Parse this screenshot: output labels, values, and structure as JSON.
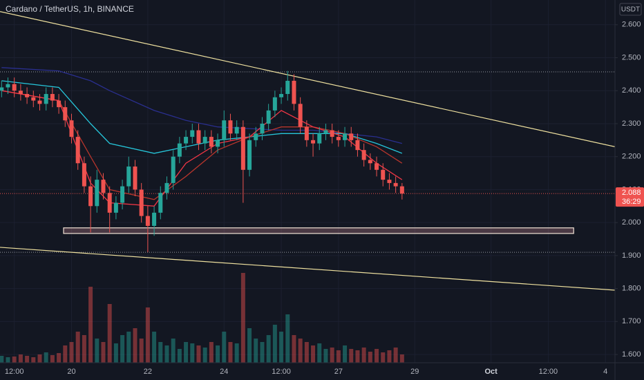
{
  "chart_data": {
    "type": "candlestick",
    "title": "Cardano / TetherUS, 1h, BINANCE",
    "currency": "USDT",
    "countdown": "36:29",
    "grid": true,
    "up_color": "#26a69a",
    "down_color": "#ef5350",
    "xlim": [
      3,
      390
    ],
    "xticks": [
      {
        "value": 12,
        "label": "12:00"
      },
      {
        "value": 48,
        "label": "20"
      },
      {
        "value": 96,
        "label": "22"
      },
      {
        "value": 144,
        "label": "24"
      },
      {
        "value": 180,
        "label": "12:00"
      },
      {
        "value": 216,
        "label": "27"
      },
      {
        "value": 264,
        "label": "29"
      },
      {
        "value": 312,
        "label": "Oct"
      },
      {
        "value": 348,
        "label": "12:00"
      },
      {
        "value": 384,
        "label": "4"
      }
    ],
    "ylim": [
      1.575,
      2.675
    ],
    "yticks": [
      {
        "value": 2.6,
        "label": "2.600"
      },
      {
        "value": 2.5,
        "label": "2.500"
      },
      {
        "value": 2.4,
        "label": "2.400"
      },
      {
        "value": 2.3,
        "label": "2.300"
      },
      {
        "value": 2.2,
        "label": "2.200"
      },
      {
        "value": 2.1,
        "label": "2.100"
      },
      {
        "value": 2.0,
        "label": "2.000"
      },
      {
        "value": 1.9,
        "label": "1.900"
      },
      {
        "value": 1.8,
        "label": "1.800"
      },
      {
        "value": 1.7,
        "label": "1.700"
      },
      {
        "value": 1.6,
        "label": "1.600"
      }
    ],
    "x": [
      4,
      8,
      12,
      16,
      20,
      24,
      28,
      32,
      36,
      40,
      44,
      48,
      52,
      56,
      60,
      64,
      68,
      72,
      76,
      80,
      84,
      88,
      92,
      96,
      100,
      104,
      108,
      112,
      116,
      120,
      124,
      128,
      132,
      136,
      140,
      144,
      148,
      152,
      156,
      160,
      164,
      168,
      172,
      176,
      180,
      184,
      188,
      192,
      196,
      200,
      204,
      208,
      212,
      216,
      220,
      224,
      228,
      232,
      236,
      240,
      244,
      248,
      252,
      256
    ],
    "open": [
      2.4,
      2.41,
      2.42,
      2.4,
      2.39,
      2.38,
      2.37,
      2.36,
      2.39,
      2.37,
      2.35,
      2.31,
      2.26,
      2.18,
      2.11,
      2.05,
      2.13,
      2.09,
      2.03,
      2.06,
      2.11,
      2.17,
      2.1,
      2.02,
      1.99,
      2.03,
      2.09,
      2.12,
      2.2,
      2.24,
      2.26,
      2.28,
      2.24,
      2.26,
      2.23,
      2.25,
      2.31,
      2.27,
      2.29,
      2.16,
      2.25,
      2.27,
      2.3,
      2.34,
      2.38,
      2.39,
      2.43,
      2.36,
      2.29,
      2.25,
      2.24,
      2.27,
      2.28,
      2.26,
      2.25,
      2.27,
      2.25,
      2.22,
      2.19,
      2.18,
      2.16,
      2.13,
      2.12,
      2.11
    ],
    "high": [
      2.43,
      2.44,
      2.44,
      2.42,
      2.41,
      2.4,
      2.39,
      2.41,
      2.41,
      2.39,
      2.37,
      2.33,
      2.28,
      2.2,
      2.14,
      2.16,
      2.15,
      2.11,
      2.08,
      2.13,
      2.2,
      2.19,
      2.12,
      2.05,
      2.05,
      2.11,
      2.14,
      2.22,
      2.26,
      2.28,
      2.3,
      2.3,
      2.28,
      2.28,
      2.27,
      2.34,
      2.33,
      2.31,
      2.31,
      2.27,
      2.29,
      2.32,
      2.36,
      2.4,
      2.41,
      2.46,
      2.45,
      2.38,
      2.31,
      2.27,
      2.29,
      2.3,
      2.3,
      2.28,
      2.29,
      2.29,
      2.27,
      2.24,
      2.21,
      2.2,
      2.18,
      2.15,
      2.14,
      2.12
    ],
    "low": [
      2.38,
      2.39,
      2.38,
      2.37,
      2.36,
      2.35,
      2.34,
      2.34,
      2.35,
      2.33,
      2.29,
      2.24,
      2.16,
      2.09,
      1.97,
      2.03,
      2.07,
      1.97,
      2.01,
      2.04,
      2.09,
      2.08,
      2.0,
      1.91,
      1.96,
      2.01,
      2.07,
      2.1,
      2.18,
      2.22,
      2.24,
      2.22,
      2.22,
      2.21,
      2.21,
      2.23,
      2.25,
      2.25,
      2.06,
      2.14,
      2.23,
      2.25,
      2.28,
      2.32,
      2.36,
      2.37,
      2.34,
      2.27,
      2.23,
      2.2,
      2.22,
      2.25,
      2.24,
      2.23,
      2.23,
      2.23,
      2.2,
      2.17,
      2.16,
      2.14,
      2.11,
      2.1,
      2.09,
      2.07
    ],
    "close": [
      2.41,
      2.42,
      2.4,
      2.39,
      2.38,
      2.37,
      2.36,
      2.39,
      2.37,
      2.35,
      2.31,
      2.26,
      2.18,
      2.11,
      2.05,
      2.13,
      2.09,
      2.03,
      2.06,
      2.11,
      2.17,
      2.1,
      2.02,
      1.99,
      2.03,
      2.09,
      2.12,
      2.2,
      2.24,
      2.26,
      2.28,
      2.24,
      2.26,
      2.23,
      2.25,
      2.31,
      2.27,
      2.29,
      2.16,
      2.25,
      2.27,
      2.3,
      2.34,
      2.38,
      2.39,
      2.43,
      2.36,
      2.29,
      2.25,
      2.24,
      2.27,
      2.28,
      2.26,
      2.25,
      2.27,
      2.25,
      2.22,
      2.19,
      2.18,
      2.16,
      2.13,
      2.12,
      2.11,
      2.088
    ],
    "volume": [
      10,
      8,
      9,
      12,
      10,
      8,
      12,
      15,
      11,
      14,
      25,
      30,
      45,
      40,
      110,
      35,
      30,
      85,
      28,
      40,
      45,
      50,
      35,
      80,
      45,
      30,
      25,
      35,
      20,
      30,
      28,
      25,
      22,
      30,
      25,
      45,
      30,
      28,
      130,
      50,
      35,
      30,
      40,
      55,
      45,
      70,
      40,
      35,
      30,
      25,
      28,
      20,
      22,
      18,
      25,
      20,
      18,
      22,
      16,
      20,
      15,
      18,
      22,
      12
    ],
    "moving_averages": [
      {
        "color": "#2a2f8f",
        "x": [
          4,
          40,
          60,
          72,
          100,
          120,
          140,
          160,
          180,
          200,
          220,
          240,
          256
        ],
        "values": [
          2.47,
          2.46,
          2.43,
          2.4,
          2.34,
          2.31,
          2.29,
          2.285,
          2.28,
          2.28,
          2.27,
          2.26,
          2.24
        ]
      },
      {
        "color": "#26c6da",
        "x": [
          4,
          40,
          60,
          72,
          100,
          120,
          140,
          160,
          180,
          200,
          220,
          240,
          256
        ],
        "values": [
          2.43,
          2.41,
          2.3,
          2.24,
          2.21,
          2.23,
          2.25,
          2.26,
          2.27,
          2.27,
          2.27,
          2.24,
          2.21
        ]
      },
      {
        "color": "#b7352c",
        "x": [
          4,
          40,
          60,
          72,
          100,
          120,
          140,
          160,
          180,
          200,
          220,
          240,
          256
        ],
        "values": [
          2.4,
          2.37,
          2.2,
          2.1,
          2.07,
          2.14,
          2.22,
          2.26,
          2.29,
          2.29,
          2.27,
          2.23,
          2.18
        ]
      },
      {
        "color": "#f23645",
        "x": [
          4,
          40,
          60,
          72,
          100,
          120,
          140,
          160,
          180,
          200,
          220,
          240,
          256
        ],
        "values": [
          2.4,
          2.37,
          2.12,
          2.06,
          2.05,
          2.18,
          2.24,
          2.26,
          2.34,
          2.29,
          2.26,
          2.18,
          2.13
        ]
      }
    ],
    "trendlines": [
      {
        "color": "#f0e2a0",
        "x": [
          3,
          390
        ],
        "values": [
          2.64,
          2.23
        ]
      },
      {
        "color": "#f0e2a0",
        "x": [
          3,
          390
        ],
        "values": [
          1.925,
          1.795
        ]
      }
    ],
    "hlines": [
      2.457,
      1.91
    ],
    "zone": {
      "x": [
        43,
        364
      ],
      "values": [
        1.967,
        1.984
      ]
    }
  }
}
